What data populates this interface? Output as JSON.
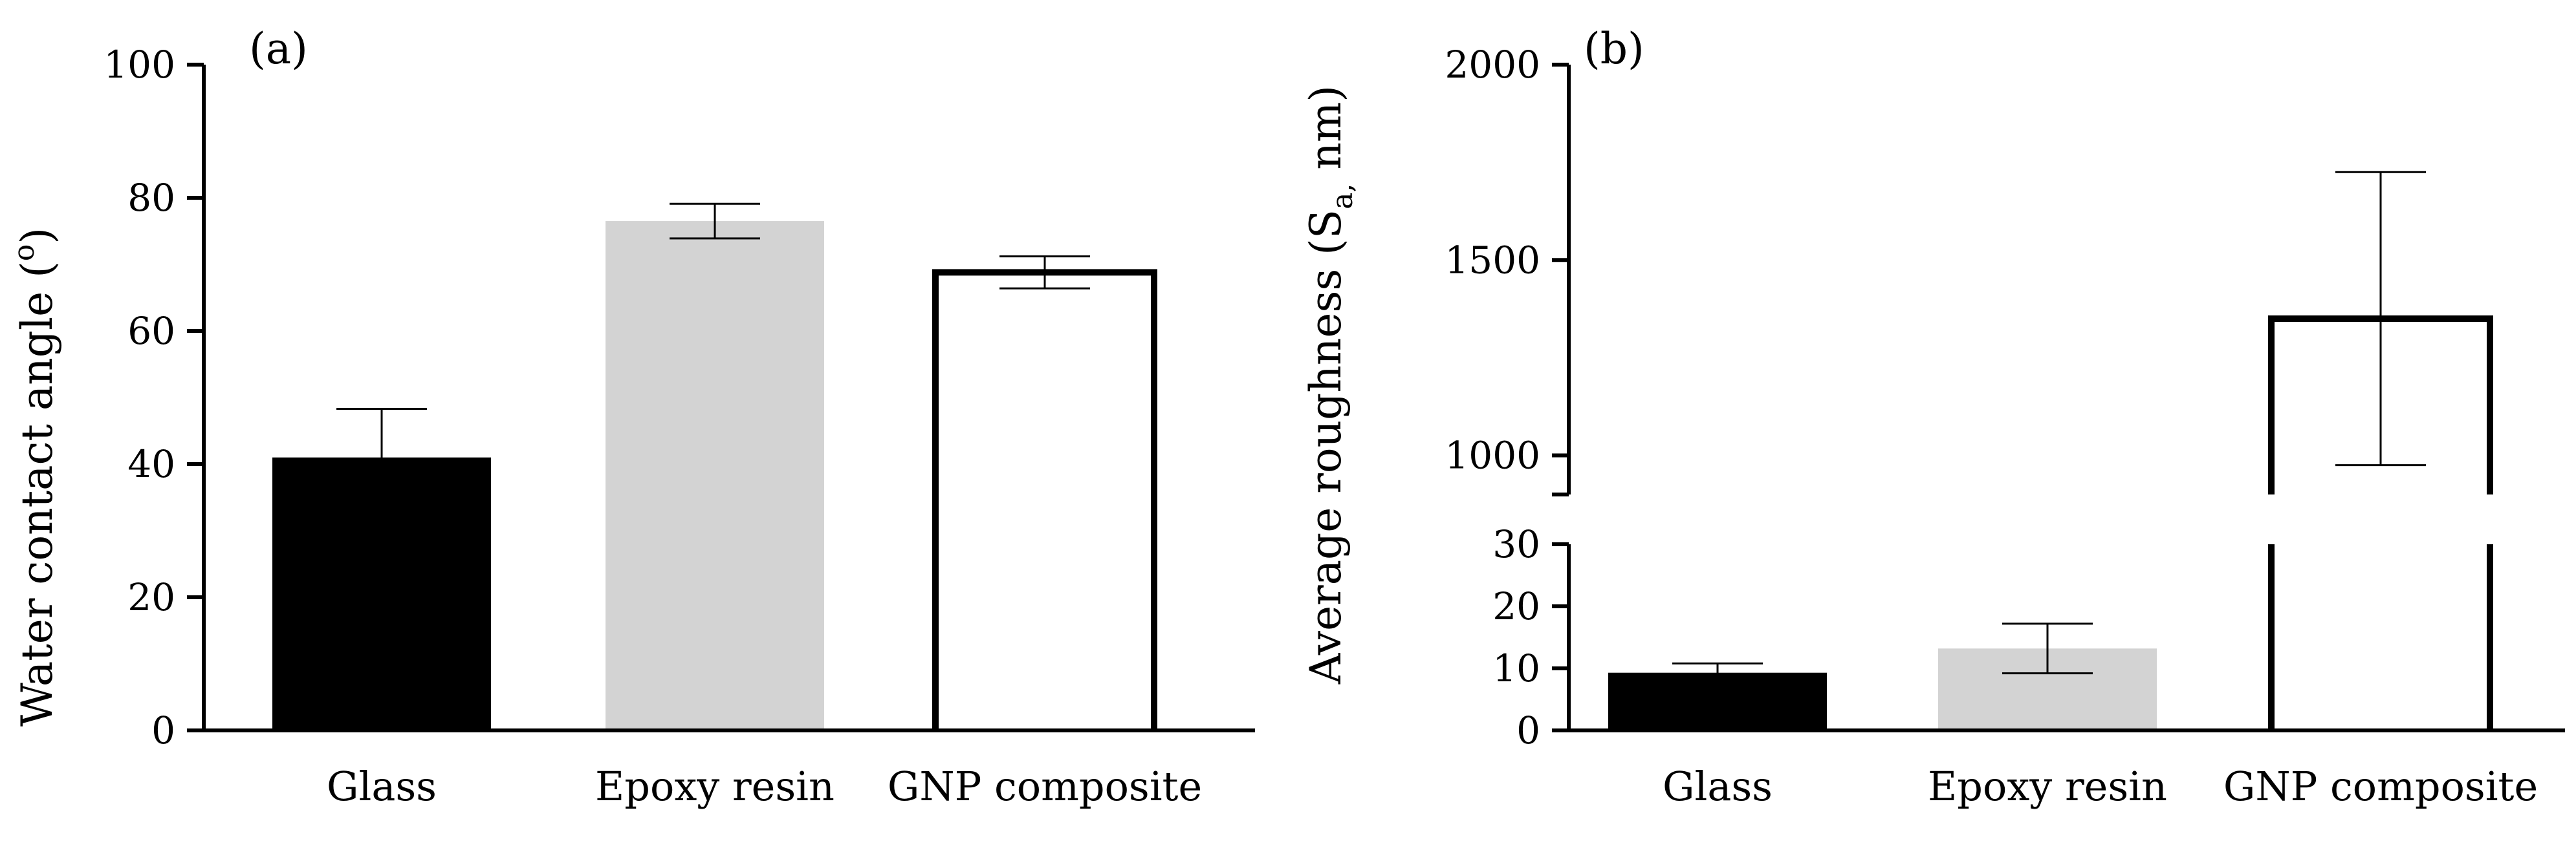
{
  "chart_data": [
    {
      "type": "bar",
      "panel_label": "(a)",
      "ylabel": "Water contact angle (",
      "ylabel_superscript": "o",
      "ylabel_close": ")",
      "categories": [
        "Glass",
        "Epoxy resin",
        "GNP composite"
      ],
      "values": [
        41,
        76.5,
        68.8
      ],
      "errors": [
        7.3,
        2.6,
        2.4
      ],
      "bar_colors": [
        "#000000",
        "#d3d3d3",
        "#ffffff"
      ],
      "bar_outlined": [
        false,
        false,
        true
      ],
      "ylim": [
        0,
        100
      ],
      "yticks": [
        0,
        20,
        40,
        60,
        80,
        100
      ],
      "ytick_labels": [
        "0",
        "20",
        "40",
        "60",
        "80",
        "100"
      ],
      "grid": false,
      "legend": "none"
    },
    {
      "type": "bar",
      "panel_label": "(b)",
      "ylabel": "Average roughness (S",
      "ylabel_subscript": "a,",
      "ylabel_close": " nm)",
      "categories": [
        "Glass",
        "Epoxy resin",
        "GNP composite"
      ],
      "values": [
        9.3,
        13.2,
        1350
      ],
      "errors": [
        1.5,
        4.0,
        375
      ],
      "bar_colors": [
        "#000000",
        "#d3d3d3",
        "#ffffff"
      ],
      "bar_outlined": [
        false,
        false,
        true
      ],
      "broken_axis": true,
      "lower_ylim": [
        0,
        30
      ],
      "upper_ylim": [
        900,
        2000
      ],
      "yticks_lower": [
        0,
        10,
        20,
        30
      ],
      "ytick_labels_lower": [
        "0",
        "10",
        "20",
        "30"
      ],
      "yticks_upper": [
        1000,
        1500,
        2000
      ],
      "ytick_labels_upper": [
        "1000",
        "1500",
        "2000"
      ],
      "grid": false,
      "legend": "none"
    }
  ]
}
